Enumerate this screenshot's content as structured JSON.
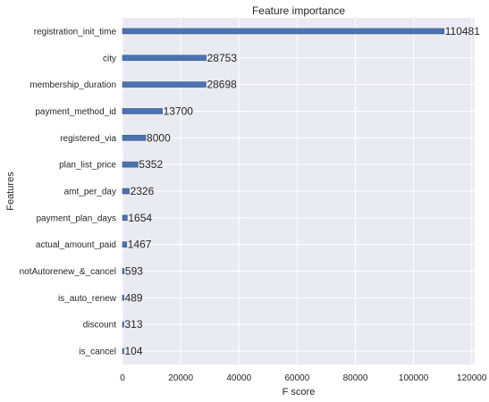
{
  "chart_data": {
    "type": "bar",
    "orientation": "horizontal",
    "title": "Feature importance",
    "xlabel": "F score",
    "ylabel": "Features",
    "xlim": [
      0,
      121000
    ],
    "xticks": [
      0,
      20000,
      40000,
      60000,
      80000,
      100000,
      120000
    ],
    "xtick_labels": [
      "0",
      "20000",
      "40000",
      "60000",
      "80000",
      "100000",
      "120000"
    ],
    "grid": true,
    "categories": [
      "registration_init_time",
      "city",
      "membership_duration",
      "payment_method_id",
      "registered_via",
      "plan_list_price",
      "amt_per_day",
      "payment_plan_days",
      "actual_amount_paid",
      "notAutorenew_&_cancel",
      "is_auto_renew",
      "discount",
      "is_cancel"
    ],
    "values": [
      110481,
      28753,
      28698,
      13700,
      8000,
      5352,
      2326,
      1654,
      1467,
      593,
      489,
      313,
      104
    ],
    "value_labels": [
      "110481",
      "28753",
      "28698",
      "13700",
      "8000",
      "5352",
      "2326",
      "1654",
      "1467",
      "593",
      "489",
      "313",
      "104"
    ],
    "colors": {
      "bar": "#4c72b0",
      "plot_bg": "#eaeaf2",
      "grid": "#ffffff",
      "text": "#262626"
    }
  }
}
